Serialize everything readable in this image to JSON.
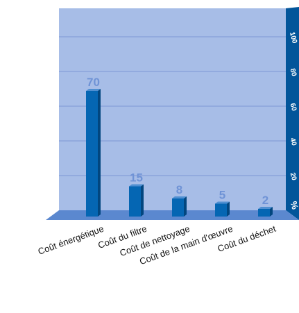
{
  "chart_data": {
    "type": "bar",
    "title": "",
    "categories": [
      "Coût énergétique",
      "Coût du filtre",
      "Coût de nettoyage",
      "Coût de la main d'œuvre",
      "Coût du déchet"
    ],
    "values": [
      70,
      15,
      8,
      5,
      2
    ],
    "data_labels": [
      "70",
      "15",
      "8",
      "5",
      "2"
    ],
    "y_tick_labels": [
      "%",
      "20",
      "40",
      "60",
      "80",
      "100"
    ],
    "ylim": [
      0,
      100
    ],
    "grid": true,
    "axis_side": "right",
    "colors": {
      "plot_background": "#a7bde7",
      "grid_line": "#7d96d4",
      "floor": "#5b88cf",
      "axis_wall": "#02559a",
      "axis_text": "#ffffff",
      "bar_front": "#0566b3",
      "bar_side": "#02467f",
      "bar_top": "#4f8fd1",
      "value_label": "#6f93d6",
      "category_text": "#111111"
    }
  }
}
